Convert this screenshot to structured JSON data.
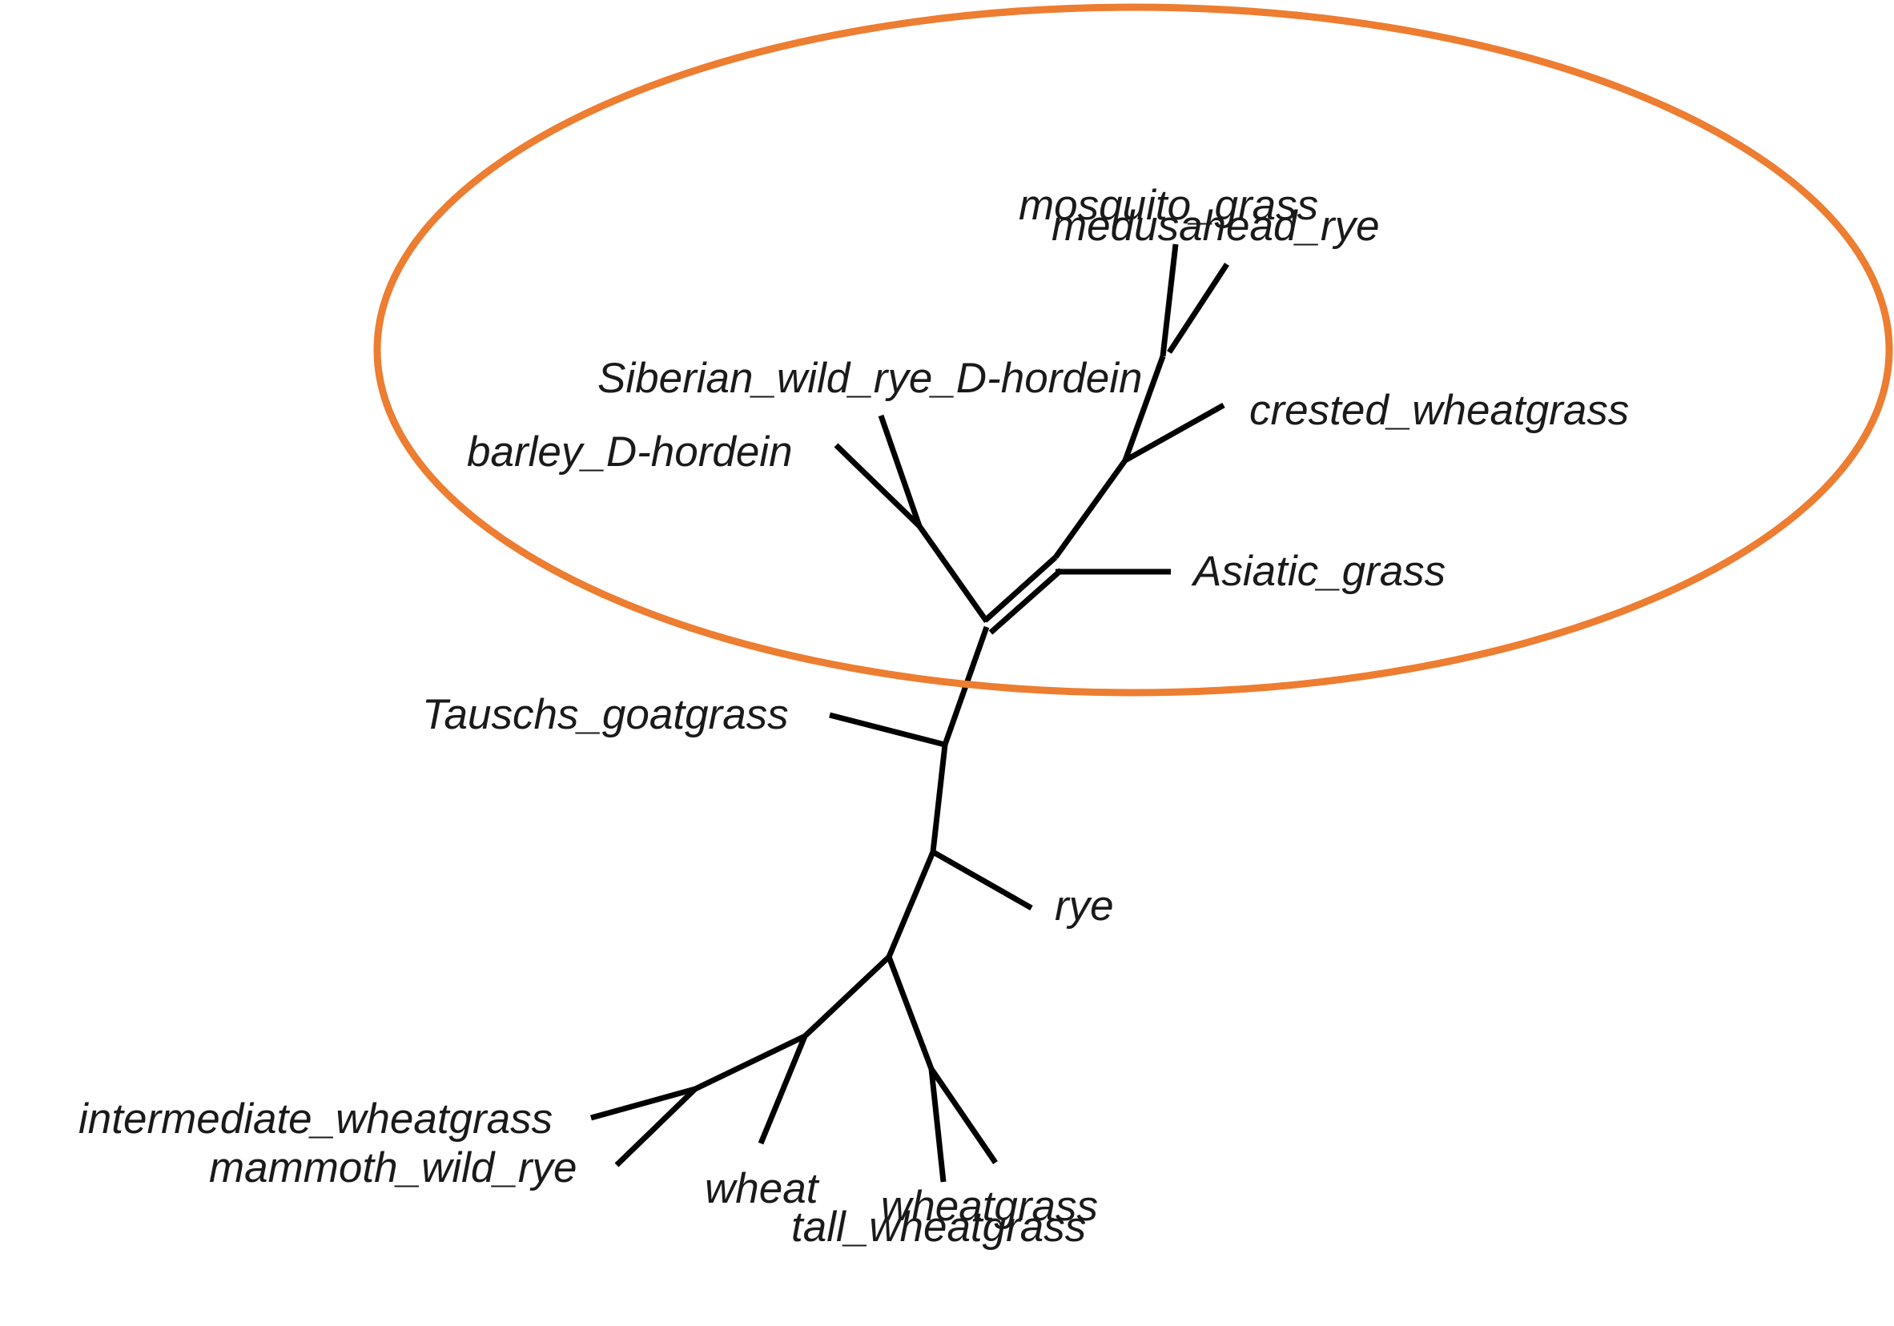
{
  "diagram": {
    "type": "unrooted phylogenetic tree",
    "tips": [
      "mosquito_grass",
      "medusahead_rye",
      "Siberian_wild_rye_D-hordein",
      "barley_D-hordein",
      "crested_wheatgrass",
      "Asiatic_grass",
      "Tauschs_goatgrass",
      "rye",
      "intermediate_wheatgrass",
      "mammoth_wild_rye",
      "wheat",
      "wheatgrass",
      "tall_wheatgrass"
    ],
    "highlight_color": "#ed7d31",
    "highlighted_clade": [
      "mosquito_grass",
      "medusahead_rye",
      "Siberian_wild_rye_D-hordein",
      "barley_D-hordein",
      "crested_wheatgrass",
      "Asiatic_grass"
    ]
  }
}
